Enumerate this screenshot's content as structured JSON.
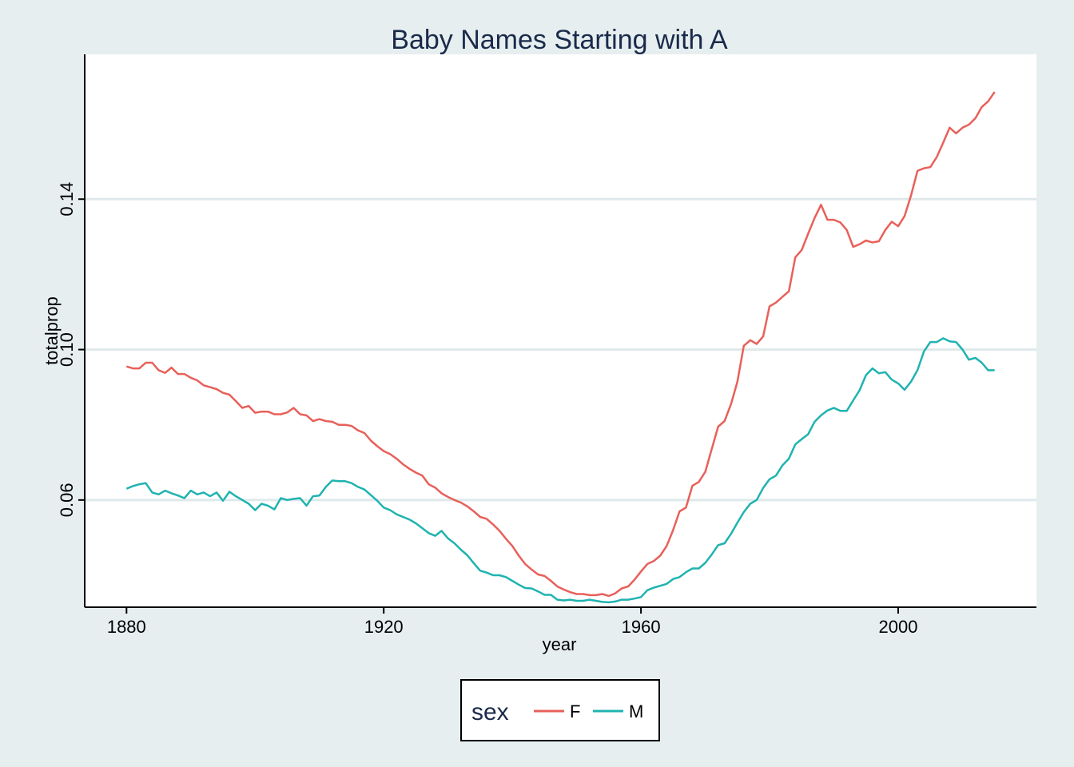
{
  "chart_data": {
    "type": "line",
    "title": "Baby Names Starting with A",
    "xlabel": "year",
    "ylabel": "totalprop",
    "xlim": [
      1873.5,
      2021.5
    ],
    "ylim": [
      0.0315,
      0.1785
    ],
    "x_ticks": [
      "1880",
      "1920",
      "1960",
      "2000"
    ],
    "y_ticks": [
      "0.06",
      "0.10",
      "0.14"
    ],
    "grid": "horizontal",
    "legend": {
      "title": "sex",
      "position": "bottom"
    },
    "series": [
      {
        "name": "F",
        "color": "#e8605a",
        "points": [
          [
            1880,
            0.0955
          ],
          [
            1881,
            0.095
          ],
          [
            1882,
            0.095
          ],
          [
            1883,
            0.0965
          ],
          [
            1884,
            0.0965
          ],
          [
            1885,
            0.0945
          ],
          [
            1886,
            0.0938
          ],
          [
            1887,
            0.0952
          ],
          [
            1888,
            0.0935
          ],
          [
            1889,
            0.0935
          ],
          [
            1890,
            0.0925
          ],
          [
            1891,
            0.0918
          ],
          [
            1892,
            0.0905
          ],
          [
            1893,
            0.09
          ],
          [
            1894,
            0.0895
          ],
          [
            1895,
            0.0885
          ],
          [
            1896,
            0.088
          ],
          [
            1897,
            0.0863
          ],
          [
            1898,
            0.0845
          ],
          [
            1899,
            0.085
          ],
          [
            1900,
            0.0832
          ],
          [
            1901,
            0.0835
          ],
          [
            1902,
            0.0835
          ],
          [
            1903,
            0.0828
          ],
          [
            1904,
            0.0828
          ],
          [
            1905,
            0.0833
          ],
          [
            1906,
            0.0845
          ],
          [
            1907,
            0.0828
          ],
          [
            1908,
            0.0825
          ],
          [
            1909,
            0.081
          ],
          [
            1910,
            0.0815
          ],
          [
            1911,
            0.081
          ],
          [
            1912,
            0.0808
          ],
          [
            1913,
            0.08
          ],
          [
            1914,
            0.08
          ],
          [
            1915,
            0.0797
          ],
          [
            1916,
            0.0785
          ],
          [
            1917,
            0.0778
          ],
          [
            1918,
            0.0758
          ],
          [
            1919,
            0.0743
          ],
          [
            1920,
            0.073
          ],
          [
            1921,
            0.0722
          ],
          [
            1922,
            0.071
          ],
          [
            1923,
            0.0695
          ],
          [
            1924,
            0.0683
          ],
          [
            1925,
            0.0673
          ],
          [
            1926,
            0.0665
          ],
          [
            1927,
            0.0642
          ],
          [
            1928,
            0.0633
          ],
          [
            1929,
            0.0618
          ],
          [
            1930,
            0.0608
          ],
          [
            1931,
            0.06
          ],
          [
            1932,
            0.0593
          ],
          [
            1933,
            0.0583
          ],
          [
            1934,
            0.057
          ],
          [
            1935,
            0.0555
          ],
          [
            1936,
            0.055
          ],
          [
            1937,
            0.0535
          ],
          [
            1938,
            0.0518
          ],
          [
            1939,
            0.0497
          ],
          [
            1940,
            0.0478
          ],
          [
            1941,
            0.0452
          ],
          [
            1942,
            0.043
          ],
          [
            1943,
            0.0415
          ],
          [
            1944,
            0.0402
          ],
          [
            1945,
            0.0398
          ],
          [
            1946,
            0.0385
          ],
          [
            1947,
            0.037
          ],
          [
            1948,
            0.0362
          ],
          [
            1949,
            0.0355
          ],
          [
            1950,
            0.035
          ],
          [
            1951,
            0.035
          ],
          [
            1952,
            0.0347
          ],
          [
            1953,
            0.0347
          ],
          [
            1954,
            0.035
          ],
          [
            1955,
            0.0345
          ],
          [
            1956,
            0.0352
          ],
          [
            1957,
            0.0365
          ],
          [
            1958,
            0.037
          ],
          [
            1959,
            0.0388
          ],
          [
            1960,
            0.041
          ],
          [
            1961,
            0.043
          ],
          [
            1962,
            0.0438
          ],
          [
            1963,
            0.0452
          ],
          [
            1964,
            0.0478
          ],
          [
            1965,
            0.052
          ],
          [
            1966,
            0.057
          ],
          [
            1967,
            0.058
          ],
          [
            1968,
            0.0638
          ],
          [
            1969,
            0.0648
          ],
          [
            1970,
            0.0675
          ],
          [
            1971,
            0.0735
          ],
          [
            1972,
            0.0795
          ],
          [
            1973,
            0.081
          ],
          [
            1974,
            0.0855
          ],
          [
            1975,
            0.0915
          ],
          [
            1976,
            0.101
          ],
          [
            1977,
            0.1025
          ],
          [
            1978,
            0.1015
          ],
          [
            1979,
            0.1035
          ],
          [
            1980,
            0.1115
          ],
          [
            1981,
            0.1125
          ],
          [
            1982,
            0.114
          ],
          [
            1983,
            0.1155
          ],
          [
            1984,
            0.1245
          ],
          [
            1985,
            0.1265
          ],
          [
            1986,
            0.1308
          ],
          [
            1987,
            0.135
          ],
          [
            1988,
            0.1385
          ],
          [
            1989,
            0.1345
          ],
          [
            1990,
            0.1345
          ],
          [
            1991,
            0.1338
          ],
          [
            1992,
            0.1318
          ],
          [
            1993,
            0.1273
          ],
          [
            1994,
            0.128
          ],
          [
            1995,
            0.129
          ],
          [
            1996,
            0.1285
          ],
          [
            1997,
            0.1288
          ],
          [
            1998,
            0.1318
          ],
          [
            1999,
            0.134
          ],
          [
            2000,
            0.1328
          ],
          [
            2001,
            0.1355
          ],
          [
            2002,
            0.141
          ],
          [
            2003,
            0.1475
          ],
          [
            2004,
            0.1482
          ],
          [
            2005,
            0.1485
          ],
          [
            2006,
            0.1512
          ],
          [
            2007,
            0.155
          ],
          [
            2008,
            0.159
          ],
          [
            2009,
            0.1575
          ],
          [
            2010,
            0.159
          ],
          [
            2011,
            0.1598
          ],
          [
            2012,
            0.1615
          ],
          [
            2013,
            0.1645
          ],
          [
            2014,
            0.166
          ],
          [
            2015,
            0.1685
          ]
        ]
      },
      {
        "name": "M",
        "color": "#1fb3b0",
        "points": [
          [
            1880,
            0.063
          ],
          [
            1881,
            0.0637
          ],
          [
            1882,
            0.0642
          ],
          [
            1883,
            0.0645
          ],
          [
            1884,
            0.062
          ],
          [
            1885,
            0.0615
          ],
          [
            1886,
            0.0625
          ],
          [
            1887,
            0.0618
          ],
          [
            1888,
            0.0612
          ],
          [
            1889,
            0.0605
          ],
          [
            1890,
            0.0625
          ],
          [
            1891,
            0.0615
          ],
          [
            1892,
            0.062
          ],
          [
            1893,
            0.061
          ],
          [
            1894,
            0.062
          ],
          [
            1895,
            0.0598
          ],
          [
            1896,
            0.0622
          ],
          [
            1897,
            0.061
          ],
          [
            1898,
            0.06
          ],
          [
            1899,
            0.059
          ],
          [
            1900,
            0.0573
          ],
          [
            1901,
            0.059
          ],
          [
            1902,
            0.0585
          ],
          [
            1903,
            0.0575
          ],
          [
            1904,
            0.0605
          ],
          [
            1905,
            0.06
          ],
          [
            1906,
            0.0603
          ],
          [
            1907,
            0.0605
          ],
          [
            1908,
            0.0585
          ],
          [
            1909,
            0.061
          ],
          [
            1910,
            0.0612
          ],
          [
            1911,
            0.0635
          ],
          [
            1912,
            0.0652
          ],
          [
            1913,
            0.065
          ],
          [
            1914,
            0.065
          ],
          [
            1915,
            0.0645
          ],
          [
            1916,
            0.0635
          ],
          [
            1917,
            0.0628
          ],
          [
            1918,
            0.0613
          ],
          [
            1919,
            0.0598
          ],
          [
            1920,
            0.058
          ],
          [
            1921,
            0.0573
          ],
          [
            1922,
            0.0562
          ],
          [
            1923,
            0.0555
          ],
          [
            1924,
            0.0548
          ],
          [
            1925,
            0.0538
          ],
          [
            1926,
            0.0525
          ],
          [
            1927,
            0.0512
          ],
          [
            1928,
            0.0505
          ],
          [
            1929,
            0.0518
          ],
          [
            1930,
            0.0498
          ],
          [
            1931,
            0.0485
          ],
          [
            1932,
            0.0468
          ],
          [
            1933,
            0.0453
          ],
          [
            1934,
            0.0432
          ],
          [
            1935,
            0.0412
          ],
          [
            1936,
            0.0407
          ],
          [
            1937,
            0.04
          ],
          [
            1938,
            0.04
          ],
          [
            1939,
            0.0395
          ],
          [
            1940,
            0.0385
          ],
          [
            1941,
            0.0375
          ],
          [
            1942,
            0.0366
          ],
          [
            1943,
            0.0365
          ],
          [
            1944,
            0.0357
          ],
          [
            1945,
            0.0348
          ],
          [
            1946,
            0.0348
          ],
          [
            1947,
            0.0335
          ],
          [
            1948,
            0.0333
          ],
          [
            1949,
            0.0335
          ],
          [
            1950,
            0.0332
          ],
          [
            1951,
            0.0332
          ],
          [
            1952,
            0.0335
          ],
          [
            1953,
            0.0332
          ],
          [
            1954,
            0.0329
          ],
          [
            1955,
            0.0328
          ],
          [
            1956,
            0.033
          ],
          [
            1957,
            0.0335
          ],
          [
            1958,
            0.0335
          ],
          [
            1959,
            0.0338
          ],
          [
            1960,
            0.0342
          ],
          [
            1961,
            0.036
          ],
          [
            1962,
            0.0367
          ],
          [
            1963,
            0.0372
          ],
          [
            1964,
            0.0377
          ],
          [
            1965,
            0.039
          ],
          [
            1966,
            0.0395
          ],
          [
            1967,
            0.0408
          ],
          [
            1968,
            0.0418
          ],
          [
            1969,
            0.0418
          ],
          [
            1970,
            0.0433
          ],
          [
            1971,
            0.0455
          ],
          [
            1972,
            0.048
          ],
          [
            1973,
            0.0485
          ],
          [
            1974,
            0.051
          ],
          [
            1975,
            0.054
          ],
          [
            1976,
            0.0568
          ],
          [
            1977,
            0.059
          ],
          [
            1978,
            0.06
          ],
          [
            1979,
            0.0632
          ],
          [
            1980,
            0.0655
          ],
          [
            1981,
            0.0665
          ],
          [
            1982,
            0.0692
          ],
          [
            1983,
            0.071
          ],
          [
            1984,
            0.0748
          ],
          [
            1985,
            0.0762
          ],
          [
            1986,
            0.0775
          ],
          [
            1987,
            0.0808
          ],
          [
            1988,
            0.0825
          ],
          [
            1989,
            0.0838
          ],
          [
            1990,
            0.0845
          ],
          [
            1991,
            0.0837
          ],
          [
            1992,
            0.0837
          ],
          [
            1993,
            0.0865
          ],
          [
            1994,
            0.0892
          ],
          [
            1995,
            0.0932
          ],
          [
            1996,
            0.095
          ],
          [
            1997,
            0.0937
          ],
          [
            1998,
            0.094
          ],
          [
            1999,
            0.092
          ],
          [
            2000,
            0.091
          ],
          [
            2001,
            0.0893
          ],
          [
            2002,
            0.0915
          ],
          [
            2003,
            0.0945
          ],
          [
            2004,
            0.0995
          ],
          [
            2005,
            0.102
          ],
          [
            2006,
            0.102
          ],
          [
            2007,
            0.103
          ],
          [
            2008,
            0.1022
          ],
          [
            2009,
            0.102
          ],
          [
            2010,
            0.1
          ],
          [
            2011,
            0.0973
          ],
          [
            2012,
            0.0978
          ],
          [
            2013,
            0.0965
          ],
          [
            2014,
            0.0945
          ],
          [
            2015,
            0.0945
          ]
        ]
      }
    ]
  }
}
